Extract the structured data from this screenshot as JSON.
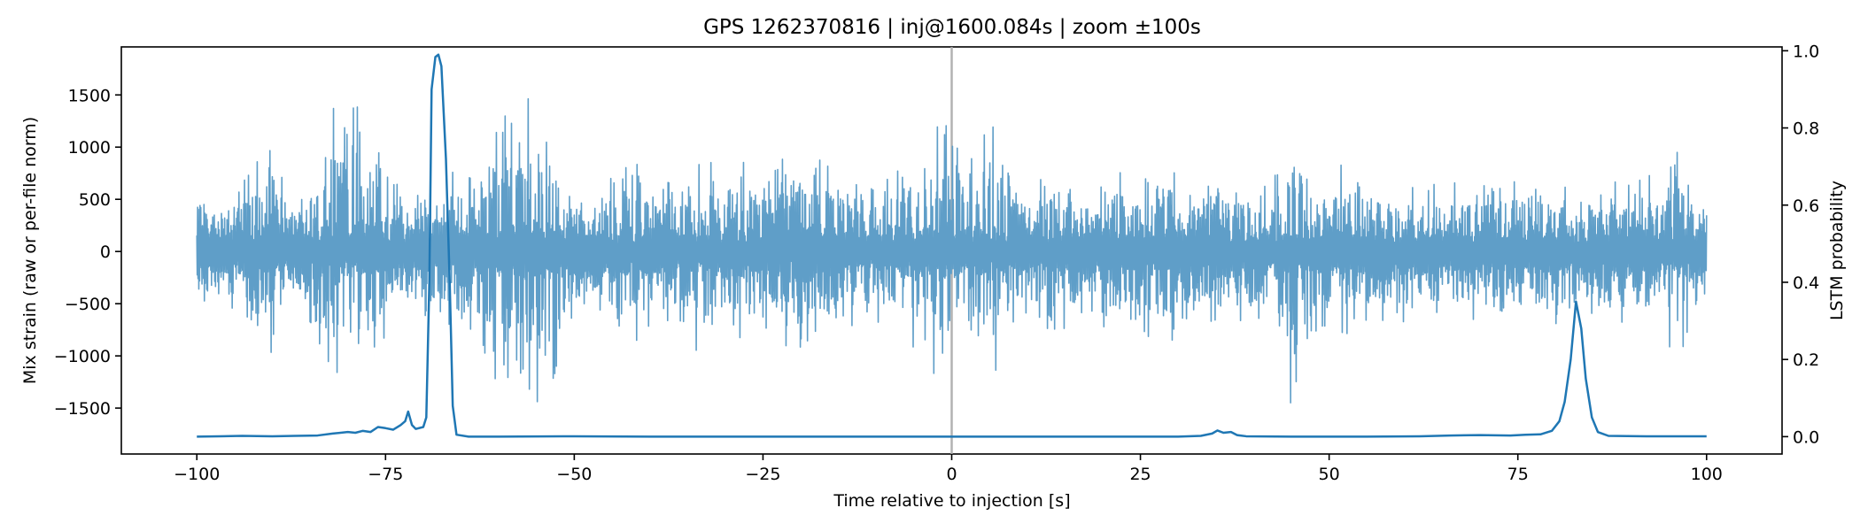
{
  "chart_data": {
    "type": "line",
    "title": "GPS 1262370816 | inj@1600.084s | zoom ±100s",
    "xlabel": "Time relative to injection [s]",
    "ylabel_left": "Mix strain (raw or per-file norm)",
    "ylabel_right": "LSTM probability",
    "xlim": [
      -110,
      110
    ],
    "ylim_left": [
      -1940,
      1960
    ],
    "ylim_right": [
      -0.045,
      1.01
    ],
    "x_ticks": [
      -100,
      -75,
      -50,
      -25,
      0,
      25,
      50,
      75,
      100
    ],
    "x_tick_labels": [
      "−100",
      "−75",
      "−50",
      "−25",
      "0",
      "25",
      "50",
      "75",
      "100"
    ],
    "y_left_ticks": [
      -1500,
      -1000,
      -500,
      0,
      500,
      1000,
      1500
    ],
    "y_left_tick_labels": [
      "−1500",
      "−1000",
      "−500",
      "0",
      "500",
      "1000",
      "1500"
    ],
    "y_right_ticks": [
      0.0,
      0.2,
      0.4,
      0.6,
      0.8,
      1.0
    ],
    "y_right_tick_labels": [
      "0.0",
      "0.2",
      "0.4",
      "0.6",
      "0.8",
      "1.0"
    ],
    "grid": false,
    "vline_x": 0,
    "series": [
      {
        "axis": "left",
        "color": "#5f9ec8",
        "x_range": [
          -100,
          100
        ],
        "noise_floor_amplitude": 300,
        "envelope": [
          [
            -100,
            600
          ],
          [
            -98,
            500
          ],
          [
            -96,
            520
          ],
          [
            -94,
            650
          ],
          [
            -92,
            900
          ],
          [
            -90,
            1000
          ],
          [
            -88,
            600
          ],
          [
            -86,
            500
          ],
          [
            -84,
            900
          ],
          [
            -82,
            1450
          ],
          [
            -80,
            1400
          ],
          [
            -78,
            1450
          ],
          [
            -76,
            1000
          ],
          [
            -74,
            700
          ],
          [
            -72,
            500
          ],
          [
            -70,
            700
          ],
          [
            -68,
            600
          ],
          [
            -66,
            800
          ],
          [
            -64,
            900
          ],
          [
            -62,
            1000
          ],
          [
            -60,
            1400
          ],
          [
            -58,
            1300
          ],
          [
            -56,
            1500
          ],
          [
            -54,
            1650
          ],
          [
            -52,
            1000
          ],
          [
            -50,
            600
          ],
          [
            -48,
            500
          ],
          [
            -46,
            600
          ],
          [
            -44,
            900
          ],
          [
            -42,
            1000
          ],
          [
            -40,
            700
          ],
          [
            -38,
            600
          ],
          [
            -36,
            1100
          ],
          [
            -34,
            1000
          ],
          [
            -32,
            950
          ],
          [
            -30,
            700
          ],
          [
            -28,
            900
          ],
          [
            -26,
            850
          ],
          [
            -24,
            700
          ],
          [
            -22,
            1000
          ],
          [
            -20,
            1100
          ],
          [
            -18,
            900
          ],
          [
            -16,
            850
          ],
          [
            -14,
            700
          ],
          [
            -12,
            800
          ],
          [
            -10,
            700
          ],
          [
            -8,
            750
          ],
          [
            -6,
            800
          ],
          [
            -4,
            1100
          ],
          [
            -2,
            1200
          ],
          [
            0,
            1300
          ],
          [
            2,
            800
          ],
          [
            4,
            1100
          ],
          [
            6,
            1300
          ],
          [
            8,
            700
          ],
          [
            10,
            600
          ],
          [
            12,
            700
          ],
          [
            14,
            850
          ],
          [
            16,
            700
          ],
          [
            18,
            600
          ],
          [
            20,
            750
          ],
          [
            22,
            800
          ],
          [
            24,
            650
          ],
          [
            26,
            900
          ],
          [
            28,
            1000
          ],
          [
            30,
            800
          ],
          [
            32,
            700
          ],
          [
            34,
            750
          ],
          [
            36,
            800
          ],
          [
            38,
            700
          ],
          [
            40,
            750
          ],
          [
            42,
            800
          ],
          [
            44,
            1000
          ],
          [
            45.4,
            1750
          ],
          [
            47,
            900
          ],
          [
            48,
            800
          ],
          [
            50,
            800
          ],
          [
            52,
            850
          ],
          [
            54,
            700
          ],
          [
            56,
            750
          ],
          [
            58,
            650
          ],
          [
            60,
            700
          ],
          [
            62,
            600
          ],
          [
            64,
            650
          ],
          [
            66,
            750
          ],
          [
            68,
            700
          ],
          [
            70,
            650
          ],
          [
            72,
            600
          ],
          [
            74,
            700
          ],
          [
            76,
            650
          ],
          [
            78,
            600
          ],
          [
            80,
            750
          ],
          [
            82,
            700
          ],
          [
            84,
            650
          ],
          [
            86,
            600
          ],
          [
            88,
            700
          ],
          [
            90,
            650
          ],
          [
            92,
            750
          ],
          [
            94,
            700
          ],
          [
            96,
            1200
          ],
          [
            97,
            900
          ],
          [
            98,
            600
          ],
          [
            100,
            650
          ]
        ]
      },
      {
        "axis": "right",
        "color": "#1f77b4",
        "points": [
          [
            -100,
            0.0
          ],
          [
            -97,
            0.001
          ],
          [
            -94,
            0.002
          ],
          [
            -90,
            0.001
          ],
          [
            -87,
            0.002
          ],
          [
            -84,
            0.003
          ],
          [
            -82,
            0.008
          ],
          [
            -80,
            0.012
          ],
          [
            -79,
            0.01
          ],
          [
            -78,
            0.015
          ],
          [
            -77,
            0.012
          ],
          [
            -76,
            0.025
          ],
          [
            -75,
            0.022
          ],
          [
            -74,
            0.018
          ],
          [
            -73,
            0.03
          ],
          [
            -72.4,
            0.04
          ],
          [
            -72,
            0.065
          ],
          [
            -71.5,
            0.03
          ],
          [
            -71,
            0.02
          ],
          [
            -70,
            0.025
          ],
          [
            -69.6,
            0.05
          ],
          [
            -69.2,
            0.4
          ],
          [
            -68.9,
            0.9
          ],
          [
            -68.4,
            0.984
          ],
          [
            -68.0,
            0.99
          ],
          [
            -67.6,
            0.96
          ],
          [
            -67.0,
            0.72
          ],
          [
            -66.5,
            0.4
          ],
          [
            -66.1,
            0.08
          ],
          [
            -65.6,
            0.005
          ],
          [
            -64,
            0.0
          ],
          [
            -60,
            0.0
          ],
          [
            -50,
            0.001
          ],
          [
            -40,
            0.0
          ],
          [
            -30,
            0.0
          ],
          [
            -20,
            0.0
          ],
          [
            -10,
            0.0
          ],
          [
            0,
            0.0
          ],
          [
            10,
            0.0
          ],
          [
            20,
            0.0
          ],
          [
            30,
            0.0
          ],
          [
            33,
            0.002
          ],
          [
            34.5,
            0.008
          ],
          [
            35.2,
            0.016
          ],
          [
            36,
            0.01
          ],
          [
            37,
            0.012
          ],
          [
            37.8,
            0.004
          ],
          [
            39,
            0.001
          ],
          [
            45,
            0.0
          ],
          [
            55,
            0.0
          ],
          [
            62,
            0.001
          ],
          [
            66,
            0.003
          ],
          [
            70,
            0.004
          ],
          [
            74,
            0.003
          ],
          [
            76,
            0.005
          ],
          [
            78,
            0.006
          ],
          [
            79.5,
            0.015
          ],
          [
            80.5,
            0.04
          ],
          [
            81.2,
            0.09
          ],
          [
            82,
            0.2
          ],
          [
            82.7,
            0.35
          ],
          [
            83.4,
            0.28
          ],
          [
            84,
            0.15
          ],
          [
            84.8,
            0.05
          ],
          [
            85.6,
            0.012
          ],
          [
            87,
            0.002
          ],
          [
            92,
            0.001
          ],
          [
            100,
            0.001
          ]
        ]
      }
    ]
  }
}
